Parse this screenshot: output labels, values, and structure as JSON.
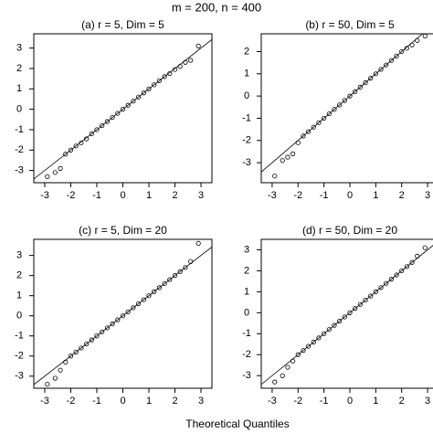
{
  "title": "m = 200, n = 400",
  "x_label": "Theoretical Quantiles",
  "chart_data": [
    {
      "type": "scatter",
      "title": "(a)  r = 5, Dim = 5",
      "color": "#000000",
      "x": [
        -2.9,
        -2.6,
        -2.4,
        -2.2,
        -2.0,
        -1.8,
        -1.6,
        -1.4,
        -1.2,
        -1.0,
        -0.8,
        -0.6,
        -0.4,
        -0.2,
        0,
        0.2,
        0.4,
        0.6,
        0.8,
        1.0,
        1.2,
        1.4,
        1.6,
        1.8,
        2.0,
        2.2,
        2.4,
        2.6,
        2.9
      ],
      "values": [
        -3.3,
        -3.1,
        -2.9,
        -2.2,
        -2.0,
        -1.8,
        -1.65,
        -1.45,
        -1.2,
        -1.0,
        -0.8,
        -0.6,
        -0.4,
        -0.2,
        0,
        0.2,
        0.4,
        0.6,
        0.8,
        1.0,
        1.2,
        1.4,
        1.6,
        1.75,
        1.95,
        2.1,
        2.3,
        2.4,
        3.1
      ],
      "xlim": [
        -3.42,
        3.42
      ],
      "ylim": [
        -3.6,
        3.7
      ],
      "xticks": [
        -3,
        -2,
        -1,
        0,
        1,
        2,
        3
      ],
      "yticks": [
        -3,
        -2,
        -1,
        0,
        1,
        2,
        3
      ]
    },
    {
      "type": "scatter",
      "title": "(b)  r = 50, Dim = 5",
      "color": "#000000",
      "x": [
        -2.9,
        -2.6,
        -2.4,
        -2.2,
        -2.0,
        -1.8,
        -1.6,
        -1.4,
        -1.2,
        -1.0,
        -0.8,
        -0.6,
        -0.4,
        -0.2,
        0,
        0.2,
        0.4,
        0.6,
        0.8,
        1.0,
        1.2,
        1.4,
        1.6,
        1.8,
        2.0,
        2.2,
        2.4,
        2.6,
        2.9
      ],
      "values": [
        -3.6,
        -2.9,
        -2.75,
        -2.6,
        -2.1,
        -1.8,
        -1.6,
        -1.4,
        -1.2,
        -1.0,
        -0.8,
        -0.6,
        -0.4,
        -0.2,
        0,
        0.2,
        0.4,
        0.6,
        0.8,
        1.0,
        1.2,
        1.4,
        1.6,
        1.8,
        2.0,
        2.15,
        2.3,
        2.5,
        2.7
      ],
      "xlim": [
        -3.42,
        3.42
      ],
      "ylim": [
        -3.9,
        2.8
      ],
      "xticks": [
        -3,
        -2,
        -1,
        0,
        1,
        2,
        3
      ],
      "yticks": [
        -3,
        -2,
        -1,
        0,
        1,
        2
      ]
    },
    {
      "type": "scatter",
      "title": "(c)  r = 5, Dim = 20",
      "color": "#000000",
      "x": [
        -2.9,
        -2.6,
        -2.4,
        -2.2,
        -2.0,
        -1.8,
        -1.6,
        -1.4,
        -1.2,
        -1.0,
        -0.8,
        -0.6,
        -0.4,
        -0.2,
        0,
        0.2,
        0.4,
        0.6,
        0.8,
        1.0,
        1.2,
        1.4,
        1.6,
        1.8,
        2.0,
        2.2,
        2.4,
        2.6,
        2.9
      ],
      "values": [
        -3.4,
        -3.1,
        -2.7,
        -2.3,
        -2.0,
        -1.8,
        -1.6,
        -1.4,
        -1.2,
        -1.0,
        -0.8,
        -0.6,
        -0.4,
        -0.2,
        0,
        0.2,
        0.4,
        0.6,
        0.8,
        1.0,
        1.2,
        1.4,
        1.6,
        1.8,
        2.0,
        2.2,
        2.4,
        2.7,
        3.6
      ],
      "xlim": [
        -3.42,
        3.42
      ],
      "ylim": [
        -3.6,
        3.8
      ],
      "xticks": [
        -3,
        -2,
        -1,
        0,
        1,
        2,
        3
      ],
      "yticks": [
        -3,
        -2,
        -1,
        0,
        1,
        2,
        3
      ]
    },
    {
      "type": "scatter",
      "title": "(d)  r = 50, Dim = 20",
      "color": "#000000",
      "x": [
        -2.9,
        -2.6,
        -2.4,
        -2.2,
        -2.0,
        -1.8,
        -1.6,
        -1.4,
        -1.2,
        -1.0,
        -0.8,
        -0.6,
        -0.4,
        -0.2,
        0,
        0.2,
        0.4,
        0.6,
        0.8,
        1.0,
        1.2,
        1.4,
        1.6,
        1.8,
        2.0,
        2.2,
        2.4,
        2.6,
        2.9
      ],
      "values": [
        -3.3,
        -3.0,
        -2.6,
        -2.3,
        -2.0,
        -1.8,
        -1.6,
        -1.4,
        -1.2,
        -1.0,
        -0.8,
        -0.6,
        -0.4,
        -0.2,
        0,
        0.2,
        0.4,
        0.6,
        0.8,
        1.0,
        1.2,
        1.4,
        1.6,
        1.8,
        2.0,
        2.2,
        2.4,
        2.7,
        3.1
      ],
      "xlim": [
        -3.42,
        3.42
      ],
      "ylim": [
        -3.6,
        3.5
      ],
      "xticks": [
        -3,
        -2,
        -1,
        0,
        1,
        2,
        3
      ],
      "yticks": [
        -3,
        -2,
        -1,
        0,
        1,
        2,
        3
      ]
    }
  ]
}
